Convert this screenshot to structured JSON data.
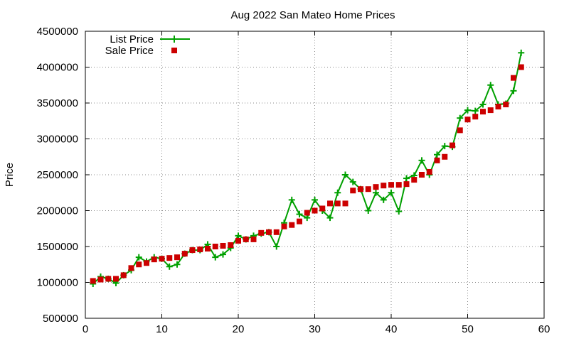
{
  "chart_data": {
    "type": "line",
    "title": "Aug 2022 San Mateo Home Prices",
    "xlabel": "",
    "ylabel": "Price",
    "xlim": [
      0,
      60
    ],
    "ylim": [
      500000,
      4500000
    ],
    "xticks": [
      0,
      10,
      20,
      30,
      40,
      50,
      60
    ],
    "yticks": [
      500000,
      1000000,
      1500000,
      2000000,
      2500000,
      3000000,
      3500000,
      4000000,
      4500000
    ],
    "grid": true,
    "legend_position": "top-left",
    "colors": {
      "list": "#00a000",
      "sale": "#cc0000",
      "grid": "#888888",
      "axis": "#000000"
    },
    "series": [
      {
        "name": "List Price",
        "style": "line-with-plus-markers",
        "x": [
          1,
          2,
          3,
          4,
          5,
          6,
          7,
          8,
          9,
          10,
          11,
          12,
          13,
          14,
          15,
          16,
          17,
          18,
          19,
          20,
          21,
          22,
          23,
          24,
          25,
          26,
          27,
          28,
          29,
          30,
          31,
          32,
          33,
          34,
          35,
          36,
          37,
          38,
          39,
          40,
          41,
          42,
          43,
          44,
          45,
          46,
          47,
          48,
          49,
          50,
          51,
          52,
          53,
          54,
          55,
          56,
          57
        ],
        "y": [
          980000,
          1080000,
          1050000,
          990000,
          1100000,
          1170000,
          1350000,
          1290000,
          1350000,
          1330000,
          1220000,
          1250000,
          1400000,
          1450000,
          1450000,
          1530000,
          1350000,
          1390000,
          1480000,
          1650000,
          1600000,
          1650000,
          1680000,
          1700000,
          1500000,
          1830000,
          2150000,
          1950000,
          1900000,
          2150000,
          2000000,
          1900000,
          2250000,
          2500000,
          2400000,
          2300000,
          2000000,
          2250000,
          2150000,
          2250000,
          1990000,
          2450000,
          2490000,
          2700000,
          2500000,
          2780000,
          2900000,
          2890000,
          3290000,
          3400000,
          3390000,
          3480000,
          3750000,
          3480000,
          3490000,
          3670000,
          4200000
        ]
      },
      {
        "name": "Sale Price",
        "style": "square-markers",
        "x": [
          1,
          2,
          3,
          4,
          5,
          6,
          7,
          8,
          9,
          10,
          11,
          12,
          13,
          14,
          15,
          16,
          17,
          18,
          19,
          20,
          21,
          22,
          23,
          24,
          25,
          26,
          27,
          28,
          29,
          30,
          31,
          32,
          33,
          34,
          35,
          36,
          37,
          38,
          39,
          40,
          41,
          42,
          43,
          44,
          45,
          46,
          47,
          48,
          49,
          50,
          51,
          52,
          53,
          54,
          55,
          56,
          57
        ],
        "y": [
          1020000,
          1040000,
          1050000,
          1050000,
          1100000,
          1200000,
          1250000,
          1270000,
          1320000,
          1330000,
          1340000,
          1350000,
          1400000,
          1450000,
          1460000,
          1470000,
          1500000,
          1510000,
          1520000,
          1580000,
          1600000,
          1600000,
          1690000,
          1700000,
          1700000,
          1780000,
          1800000,
          1850000,
          1970000,
          2000000,
          2030000,
          2100000,
          2100000,
          2100000,
          2280000,
          2300000,
          2300000,
          2330000,
          2350000,
          2360000,
          2360000,
          2370000,
          2430000,
          2500000,
          2540000,
          2700000,
          2750000,
          2910000,
          3120000,
          3270000,
          3310000,
          3380000,
          3400000,
          3450000,
          3480000,
          3850000,
          4000000
        ]
      }
    ]
  }
}
